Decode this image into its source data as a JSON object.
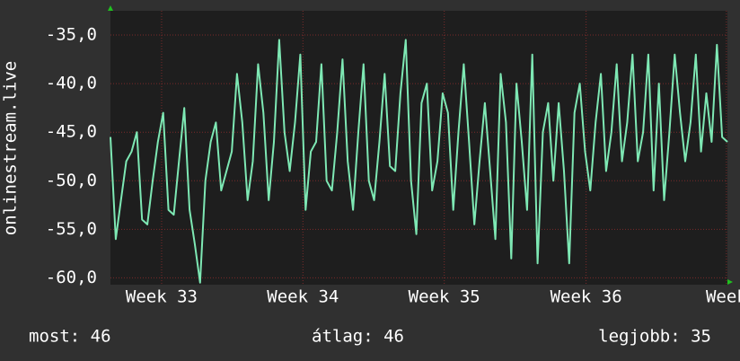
{
  "chart_data": {
    "type": "line",
    "y_label": "onlinestream.live",
    "values": [
      -45.5,
      -56,
      -52,
      -48,
      -47,
      -45,
      -54,
      -54.5,
      -50,
      -46,
      -43,
      -53,
      -53.5,
      -48,
      -42.5,
      -53,
      -56.5,
      -60.5,
      -50,
      -46,
      -44,
      -51,
      -49,
      -47,
      -39,
      -44,
      -52,
      -48,
      -38,
      -43,
      -52,
      -46,
      -35.5,
      -45,
      -49,
      -44,
      -37,
      -53,
      -47,
      -46,
      -38,
      -50,
      -51,
      -45,
      -37.5,
      -48,
      -53,
      -45,
      -38,
      -50,
      -52,
      -46,
      -39,
      -48.5,
      -49,
      -41,
      -35.5,
      -50,
      -55.5,
      -42,
      -40,
      -51,
      -48,
      -41,
      -43,
      -53,
      -45,
      -38,
      -46,
      -54.5,
      -48,
      -42,
      -49,
      -56,
      -39,
      -44,
      -58,
      -40,
      -46,
      -53,
      -37,
      -58.5,
      -45,
      -42,
      -50,
      -42,
      -49,
      -58.5,
      -43,
      -40,
      -47,
      -51,
      -44,
      -39,
      -49,
      -45,
      -38,
      -48,
      -44,
      -37,
      -48,
      -45,
      -37,
      -51,
      -40,
      -52,
      -45,
      -37,
      -43,
      -48,
      -44,
      -37,
      -47,
      -41,
      -46,
      -36,
      -45.5,
      -46
    ],
    "color": "#7ee8b4",
    "xlim": [
      0,
      117
    ],
    "xticks": [
      {
        "value": 9.7,
        "label": "Week 33"
      },
      {
        "value": 36.5,
        "label": "Week 34"
      },
      {
        "value": 63.3,
        "label": "Week 35"
      },
      {
        "value": 90.2,
        "label": "Week 36"
      },
      {
        "value": 116.8,
        "label": "Week"
      }
    ],
    "ylim": [
      -60.7,
      -32.5
    ],
    "yticks": [
      {
        "value": -35,
        "label": "-35,0"
      },
      {
        "value": -40,
        "label": "-40,0"
      },
      {
        "value": -45,
        "label": "-45,0"
      },
      {
        "value": -50,
        "label": "-50,0"
      },
      {
        "value": -55,
        "label": "-55,0"
      },
      {
        "value": -60,
        "label": "-60,0"
      }
    ],
    "grid": true,
    "stats": [
      "most: 46",
      "átlag: 46",
      "legjobb: 35"
    ]
  }
}
